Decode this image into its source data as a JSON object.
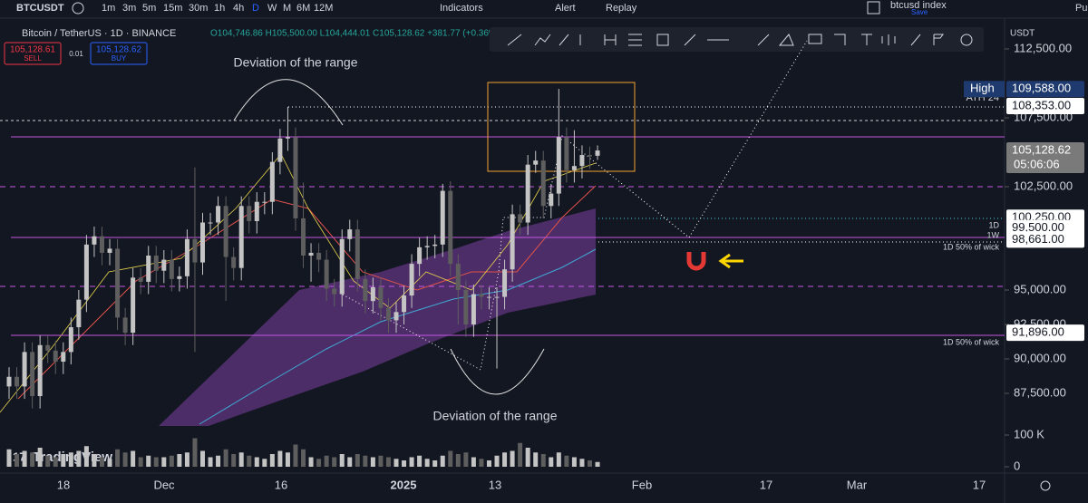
{
  "toolbar": {
    "symbol": "BTCUSDT",
    "intervals": [
      "1m",
      "3m",
      "5m",
      "15m",
      "30m",
      "1h",
      "4h",
      "D",
      "W",
      "M",
      "6M",
      "12M"
    ],
    "indicators": "Indicators",
    "alert": "Alert",
    "replay": "Replay",
    "layout_name": "btcusd index",
    "save": "Save",
    "publish": "Pu"
  },
  "legend": {
    "title": "Bitcoin / TetherUS · 1D · BINANCE",
    "ohlc": "O104,746.86 H105,500.00 L104,444.01 C105,128.62 +381.77 (+0.36%)",
    "sell_price": "105,128.61",
    "sell": "SELL",
    "spread": "0.01",
    "buy_price": "105,128.62",
    "buy": "BUY"
  },
  "chart": {
    "type": "candlestick",
    "currency": "USDT",
    "brand": "TradingView",
    "ylim": [
      87500,
      112500
    ],
    "yticks": [
      {
        "value": 112500,
        "label": "112,500.00"
      },
      {
        "value": 107500,
        "label": "107,500.00"
      },
      {
        "value": 102500,
        "label": "102,500.00"
      },
      {
        "value": 95000,
        "label": "95,000.00"
      },
      {
        "value": 92500,
        "label": "92,500.00"
      },
      {
        "value": 90000,
        "label": "90,000.00"
      },
      {
        "value": 87500,
        "label": "87,500.00"
      }
    ],
    "x_labels": [
      "18",
      "Dec",
      "16",
      "2025",
      "13",
      "Feb",
      "17",
      "Mar",
      "17"
    ],
    "up_color": "#c4c4c4",
    "down_color": "#5e5e5e",
    "candles": [
      [
        88000,
        89400,
        87100,
        88700
      ],
      [
        88700,
        89400,
        87100,
        88000
      ],
      [
        88000,
        91200,
        87100,
        90500
      ],
      [
        90500,
        91200,
        86400,
        87300
      ],
      [
        87300,
        91700,
        86400,
        91000
      ],
      [
        91000,
        91700,
        89700,
        90600
      ],
      [
        90600,
        91300,
        88900,
        89800
      ],
      [
        89800,
        91200,
        88900,
        90500
      ],
      [
        90500,
        93000,
        89600,
        92300
      ],
      [
        92300,
        95000,
        91400,
        94300
      ],
      [
        94300,
        99000,
        93400,
        98300
      ],
      [
        98300,
        99600,
        97400,
        98900
      ],
      [
        98900,
        99600,
        96800,
        97700
      ],
      [
        97700,
        98700,
        96800,
        98000
      ],
      [
        98000,
        98700,
        92100,
        93000
      ],
      [
        93000,
        93700,
        91000,
        91900
      ],
      [
        91900,
        96600,
        91000,
        95900
      ],
      [
        95900,
        96600,
        94700,
        95600
      ],
      [
        95600,
        98200,
        94700,
        97500
      ],
      [
        97500,
        98200,
        95500,
        96400
      ],
      [
        96400,
        97900,
        95500,
        97200
      ],
      [
        97200,
        97900,
        94900,
        95800
      ],
      [
        95800,
        96700,
        94900,
        96000
      ],
      [
        96000,
        99400,
        95100,
        98700
      ],
      [
        98700,
        103900,
        90500,
        97000
      ],
      [
        97000,
        100600,
        96100,
        99900
      ],
      [
        99900,
        100600,
        99000,
        99900
      ],
      [
        99900,
        101800,
        99000,
        101100
      ],
      [
        101100,
        101800,
        94200,
        97400
      ],
      [
        97400,
        98100,
        95700,
        96600
      ],
      [
        96600,
        101800,
        95700,
        101100
      ],
      [
        101100,
        101800,
        99100,
        100000
      ],
      [
        100000,
        102100,
        99100,
        101400
      ],
      [
        101400,
        102100,
        100500,
        101400
      ],
      [
        101400,
        105000,
        100500,
        104300
      ],
      [
        104300,
        106700,
        103400,
        106000
      ],
      [
        106000,
        108300,
        105100,
        106100
      ],
      [
        106100,
        106800,
        99300,
        100200
      ],
      [
        100200,
        102800,
        96600,
        97500
      ],
      [
        97500,
        98400,
        95600,
        97700
      ],
      [
        97700,
        98400,
        96300,
        97200
      ],
      [
        97200,
        97900,
        94200,
        95100
      ],
      [
        95100,
        95800,
        93800,
        94700
      ],
      [
        94700,
        99400,
        93800,
        98700
      ],
      [
        98700,
        100100,
        97800,
        99400
      ],
      [
        99400,
        100100,
        94900,
        95800
      ],
      [
        95800,
        96500,
        93300,
        94200
      ],
      [
        94200,
        95900,
        93300,
        95200
      ],
      [
        95200,
        95900,
        92800,
        93700
      ],
      [
        93700,
        94400,
        91900,
        92800
      ],
      [
        92800,
        94100,
        91900,
        93400
      ],
      [
        93400,
        95300,
        92500,
        94600
      ],
      [
        94600,
        97600,
        93700,
        96900
      ],
      [
        96900,
        98800,
        96000,
        98100
      ],
      [
        98100,
        98900,
        97200,
        98200
      ],
      [
        98200,
        99000,
        97300,
        98300
      ],
      [
        98300,
        102700,
        97400,
        102200
      ],
      [
        102200,
        102900,
        96000,
        96900
      ],
      [
        96900,
        97600,
        92500,
        95000
      ],
      [
        95000,
        95700,
        91600,
        92500
      ],
      [
        92500,
        95400,
        91600,
        94700
      ],
      [
        94700,
        95400,
        93600,
        94500
      ],
      [
        94500,
        95200,
        93600,
        94500
      ],
      [
        94500,
        95200,
        89300,
        94500
      ],
      [
        94500,
        97200,
        93600,
        96500
      ],
      [
        96500,
        101200,
        95600,
        100500
      ],
      [
        100500,
        101200,
        99000,
        99900
      ],
      [
        99900,
        104800,
        99000,
        104100
      ],
      [
        104100,
        105100,
        103500,
        104400
      ],
      [
        104400,
        105100,
        100200,
        101100
      ],
      [
        101100,
        102700,
        100200,
        102000
      ],
      [
        102000,
        109600,
        101100,
        106100
      ],
      [
        106100,
        106800,
        102800,
        103700
      ],
      [
        103700,
        106600,
        102800,
        104000
      ],
      [
        104000,
        105500,
        103100,
        104800
      ],
      [
        104800,
        105400,
        103800,
        104700
      ],
      [
        104746.86,
        105500,
        104444.01,
        105128.62
      ]
    ],
    "volume": [
      55,
      40,
      50,
      45,
      60,
      35,
      30,
      40,
      45,
      50,
      65,
      40,
      30,
      25,
      55,
      45,
      50,
      30,
      35,
      30,
      30,
      35,
      40,
      45,
      90,
      50,
      30,
      35,
      55,
      40,
      45,
      35,
      30,
      25,
      40,
      50,
      45,
      70,
      55,
      30,
      25,
      35,
      30,
      40,
      30,
      40,
      35,
      30,
      35,
      30,
      25,
      20,
      30,
      35,
      25,
      20,
      35,
      50,
      40,
      45,
      30,
      25,
      20,
      35,
      45,
      50,
      75,
      60,
      45,
      40,
      30,
      45,
      35,
      30,
      25,
      20,
      15
    ],
    "vlim": [
      0,
      100
    ],
    "vticks": [
      {
        "value": 100,
        "label": "100 K"
      },
      0
    ],
    "price_labels": [
      {
        "value": 109588,
        "label": "109,588.00",
        "tag": "High"
      },
      {
        "value": 108353,
        "label": "108,353.00"
      },
      {
        "value": 105128.62,
        "label": "105,128.62",
        "sub": "05:06:06"
      },
      {
        "value": 100250,
        "label": "100,250.00"
      },
      {
        "value": 99500,
        "label": "99,500.00"
      },
      {
        "value": 98661,
        "label": "98,661.00"
      },
      {
        "value": 91896,
        "label": "91,896.00"
      }
    ],
    "annotations": {
      "top": "Deviation of the range",
      "bottom": "Deviation of the range",
      "ath": "ATH 24",
      "d1": "1D",
      "w1": "1W",
      "wick1": "1D 50% of wick",
      "wick2": "1D 50% of wick"
    }
  }
}
